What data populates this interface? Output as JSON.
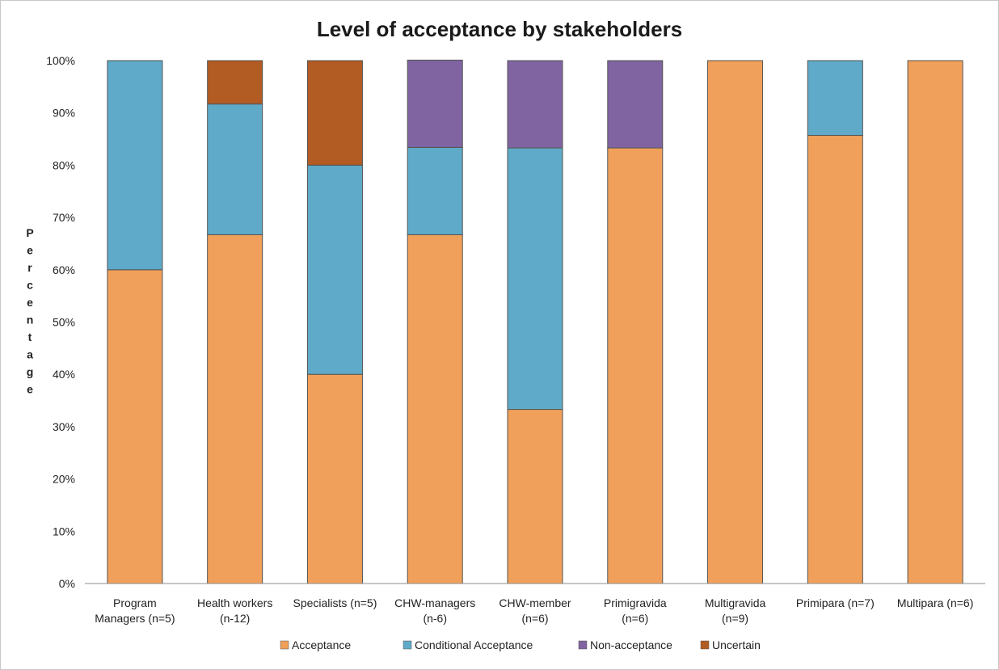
{
  "chart_data": {
    "type": "bar",
    "stacked": true,
    "title": "Level of acceptance by stakeholders",
    "xlabel": "",
    "ylabel": "Percentage",
    "ylim": [
      0,
      100
    ],
    "yticks": [
      "0%",
      "10%",
      "20%",
      "30%",
      "40%",
      "50%",
      "60%",
      "70%",
      "80%",
      "90%",
      "100%"
    ],
    "grid": false,
    "legend_position": "bottom",
    "categories": [
      [
        "Program",
        "Managers (n=5)"
      ],
      [
        "Health workers",
        "(n-12)"
      ],
      [
        "Specialists (n=5)"
      ],
      [
        "CHW-managers",
        "(n-6)"
      ],
      [
        "CHW-member",
        "(n=6)"
      ],
      [
        "Primigravida",
        "(n=6)"
      ],
      [
        "Multigravida",
        "(n=9)"
      ],
      [
        "Primipara (n=7)"
      ],
      [
        "Multipara (n=6)"
      ]
    ],
    "series": [
      {
        "name": "Acceptance",
        "color": "#f0a05a",
        "values": [
          60,
          66.7,
          40,
          66.7,
          33.3,
          83.3,
          100,
          85.7,
          100
        ]
      },
      {
        "name": "Conditional Acceptance",
        "color": "#5faac8",
        "values": [
          40,
          25,
          40,
          16.7,
          50,
          0,
          0,
          14.3,
          0
        ]
      },
      {
        "name": "Non-acceptance",
        "color": "#8064a2",
        "values": [
          0,
          0,
          0,
          16.7,
          16.7,
          16.7,
          0,
          0,
          0
        ]
      },
      {
        "name": "Uncertain",
        "color": "#b25b22",
        "values": [
          0,
          8.3,
          20,
          0,
          0,
          0,
          0,
          0,
          0
        ]
      }
    ]
  }
}
